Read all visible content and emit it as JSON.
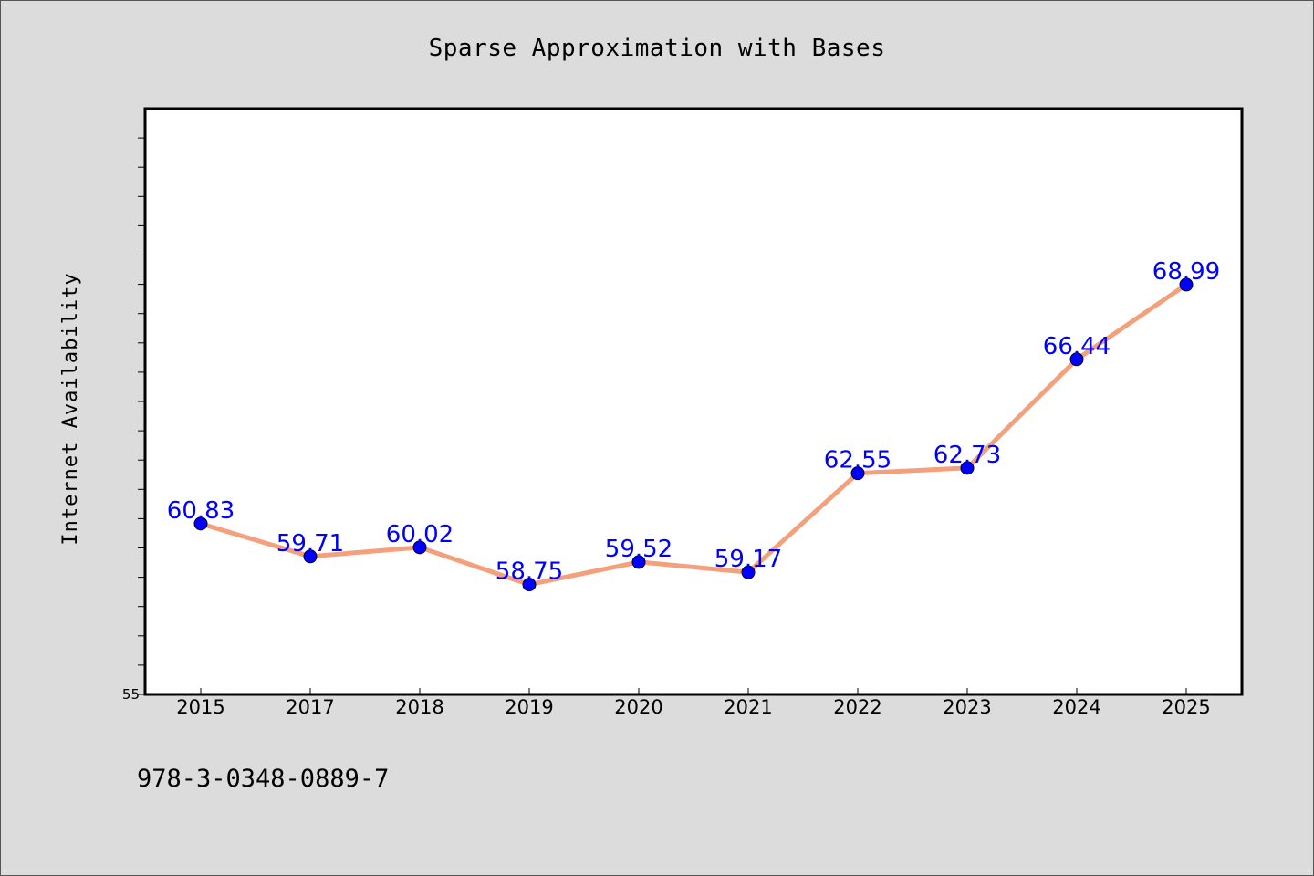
{
  "chart_data": {
    "type": "line",
    "title": "Sparse Approximation with Bases",
    "xlabel": "",
    "ylabel": "Internet Availability",
    "categories": [
      "2015",
      "2017",
      "2018",
      "2019",
      "2020",
      "2021",
      "2022",
      "2023",
      "2024",
      "2025"
    ],
    "series": [
      {
        "values": [
          60.83,
          59.71,
          60.02,
          58.75,
          59.52,
          59.17,
          62.55,
          62.73,
          66.44,
          68.99
        ]
      }
    ],
    "data_labels": [
      "60.83",
      "59.71",
      "60.02",
      "58.75",
      "59.52",
      "59.17",
      "62.55",
      "62.73",
      "66.44",
      "68.99"
    ],
    "ylim": [
      55,
      75
    ],
    "y_tick_labels": [
      "55"
    ],
    "grid": false,
    "legend": "none",
    "colors": {
      "line": "#f4a07c",
      "marker": "#0000ff",
      "label": "#0000ff",
      "background": "#dcdcdc",
      "plot_bg": "#ffffff"
    }
  },
  "footer_text": "978-3-0348-0889-7"
}
